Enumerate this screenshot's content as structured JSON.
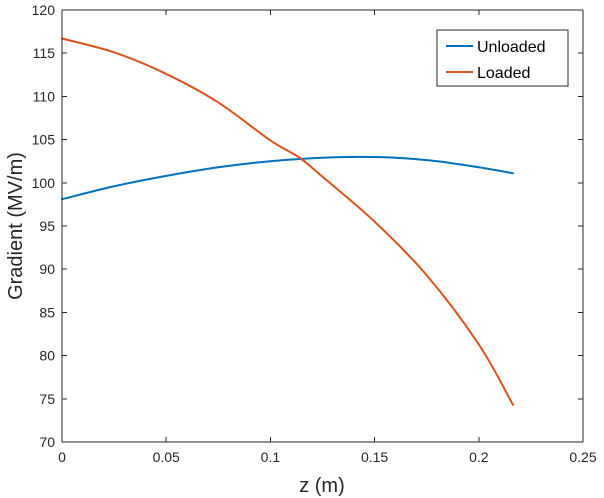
{
  "chart_data": {
    "type": "line",
    "title": "",
    "xlabel": "z (m)",
    "ylabel": "Gradient (MV/m)",
    "xlim": [
      0,
      0.25
    ],
    "ylim": [
      70,
      120
    ],
    "xticks": [
      0,
      0.05,
      0.1,
      0.15,
      0.2,
      0.25
    ],
    "xtick_labels": [
      "0",
      "0.05",
      "0.1",
      "0.15",
      "0.2",
      "0.25"
    ],
    "yticks": [
      70,
      75,
      80,
      85,
      90,
      95,
      100,
      105,
      110,
      115,
      120
    ],
    "ytick_labels": [
      "70",
      "75",
      "80",
      "85",
      "90",
      "95",
      "100",
      "105",
      "110",
      "115",
      "120"
    ],
    "grid": false,
    "legend": {
      "position": "top-right",
      "entries": [
        "Unloaded",
        "Loaded"
      ]
    },
    "series": [
      {
        "name": "Unloaded",
        "color": "#0072BD",
        "x": [
          0,
          0.025,
          0.05,
          0.075,
          0.1,
          0.125,
          0.143,
          0.16,
          0.18,
          0.2,
          0.2164
        ],
        "y": [
          98.1,
          99.6,
          100.8,
          101.8,
          102.5,
          102.9,
          103.0,
          102.9,
          102.5,
          101.8,
          101.1
        ]
      },
      {
        "name": "Loaded",
        "color": "#D95319",
        "x": [
          0,
          0.025,
          0.05,
          0.075,
          0.1,
          0.114,
          0.125,
          0.15,
          0.175,
          0.2,
          0.2164
        ],
        "y": [
          116.7,
          115.1,
          112.6,
          109.3,
          104.9,
          102.9,
          100.7,
          95.5,
          89.3,
          81.3,
          74.3
        ]
      }
    ]
  }
}
